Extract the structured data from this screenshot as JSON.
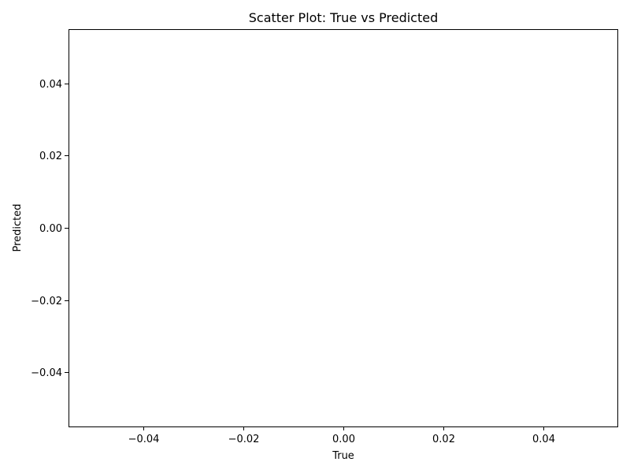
{
  "chart_data": {
    "type": "scatter",
    "title": "Scatter Plot: True vs Predicted",
    "xlabel": "True",
    "ylabel": "Predicted",
    "x": [],
    "y": [],
    "xlim": [
      -0.055,
      0.055
    ],
    "ylim": [
      -0.055,
      0.055
    ],
    "xticks": [
      -0.04,
      -0.02,
      0.0,
      0.02,
      0.04
    ],
    "yticks": [
      -0.04,
      -0.02,
      0.0,
      0.02,
      0.04
    ],
    "xtick_labels": [
      "−0.04",
      "−0.02",
      "0.00",
      "0.02",
      "0.04"
    ],
    "ytick_labels": [
      "−0.04",
      "−0.02",
      "0.00",
      "0.02",
      "0.04"
    ],
    "grid": false,
    "point_color": "#1f77b4"
  }
}
